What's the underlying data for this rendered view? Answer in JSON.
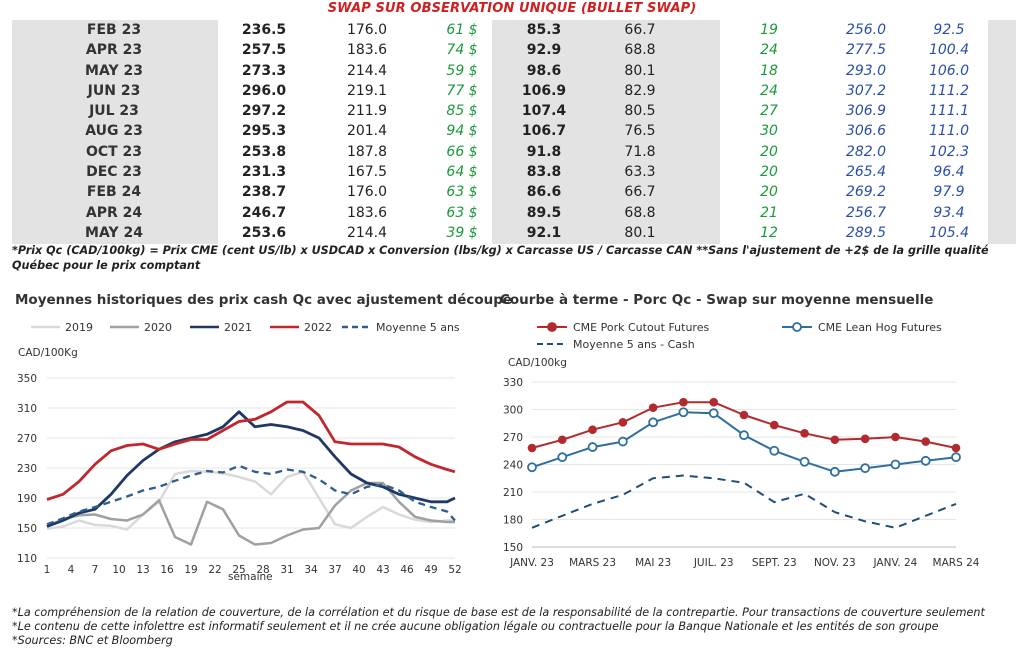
{
  "table": {
    "title": "SWAP SUR OBSERVATION UNIQUE (BULLET SWAP)",
    "rows": [
      [
        "FEB 23",
        "236.5",
        "176.0",
        "61 $",
        "85.3",
        "66.7",
        "19",
        "256.0",
        "92.5"
      ],
      [
        "APR 23",
        "257.5",
        "183.6",
        "74 $",
        "92.9",
        "68.8",
        "24",
        "277.5",
        "100.4"
      ],
      [
        "MAY 23",
        "273.3",
        "214.4",
        "59 $",
        "98.6",
        "80.1",
        "18",
        "293.0",
        "106.0"
      ],
      [
        "JUN 23",
        "296.0",
        "219.1",
        "77 $",
        "106.9",
        "82.9",
        "24",
        "307.2",
        "111.2"
      ],
      [
        "JUL 23",
        "297.2",
        "211.9",
        "85 $",
        "107.4",
        "80.5",
        "27",
        "306.9",
        "111.1"
      ],
      [
        "AUG 23",
        "295.3",
        "201.4",
        "94 $",
        "106.7",
        "76.5",
        "30",
        "306.6",
        "111.0"
      ],
      [
        "OCT 23",
        "253.8",
        "187.8",
        "66 $",
        "91.8",
        "71.8",
        "20",
        "282.0",
        "102.3"
      ],
      [
        "DEC 23",
        "231.3",
        "167.5",
        "64 $",
        "83.8",
        "63.3",
        "20",
        "265.4",
        "96.4"
      ],
      [
        "FEB 24",
        "238.7",
        "176.0",
        "63 $",
        "86.6",
        "66.7",
        "20",
        "269.2",
        "97.9"
      ],
      [
        "APR 24",
        "246.7",
        "183.6",
        "63 $",
        "89.5",
        "68.8",
        "21",
        "256.7",
        "93.4"
      ],
      [
        "MAY 24",
        "253.6",
        "214.4",
        "39 $",
        "92.1",
        "80.1",
        "12",
        "289.5",
        "105.4"
      ]
    ],
    "footnote": "*Prix Qc (CAD/100kg) = Prix CME (cent US/lb) x USDCAD x Conversion (lbs/kg) x Carcasse US / Carcasse CAN **Sans l'ajustement de +2$ de la grille qualité Québec pour le prix comptant"
  },
  "colors": {
    "title_red": "#d01f1f",
    "green": "#1a9a3a",
    "blue": "#2a4fa8",
    "grey_bg": "#e3e3e3",
    "s2019": "#d9d9d9",
    "s2020": "#a0a0a0",
    "s2021": "#1f3864",
    "s2022": "#c0282c",
    "savg": "#2e5e8e",
    "cutout": "#b22a2e",
    "lean": "#2e6f9e",
    "cash": "#1f4e79"
  },
  "chart_data": [
    {
      "type": "line",
      "title": "Moyennes historiques des prix cash Qc avec ajustement découpe",
      "ylabel": "CAD/100Kg",
      "xlabel": "semaine",
      "ylim": [
        110,
        350
      ],
      "yticks": [
        110,
        150,
        190,
        230,
        270,
        310,
        350
      ],
      "xticks": [
        1,
        4,
        7,
        10,
        13,
        16,
        19,
        22,
        25,
        28,
        31,
        34,
        37,
        40,
        43,
        46,
        49,
        52
      ],
      "legend": "top",
      "x": [
        1,
        3,
        5,
        7,
        9,
        11,
        13,
        15,
        17,
        19,
        21,
        23,
        25,
        27,
        29,
        31,
        33,
        35,
        37,
        39,
        41,
        43,
        45,
        47,
        49,
        51,
        52
      ],
      "series": [
        {
          "name": "2019",
          "style": "solid",
          "values": [
            149,
            152,
            160,
            154,
            153,
            148,
            168,
            185,
            222,
            226,
            225,
            223,
            218,
            212,
            195,
            218,
            225,
            190,
            155,
            150,
            165,
            178,
            168,
            161,
            158,
            160,
            160
          ]
        },
        {
          "name": "2020",
          "style": "solid",
          "values": [
            152,
            162,
            167,
            168,
            162,
            160,
            168,
            187,
            138,
            128,
            185,
            175,
            140,
            128,
            130,
            140,
            148,
            150,
            180,
            200,
            210,
            210,
            185,
            165,
            160,
            158,
            158
          ]
        },
        {
          "name": "2021",
          "style": "solid",
          "values": [
            152,
            160,
            170,
            175,
            195,
            220,
            240,
            255,
            265,
            270,
            275,
            285,
            305,
            285,
            288,
            285,
            280,
            270,
            245,
            222,
            210,
            205,
            195,
            190,
            185,
            185,
            190
          ]
        },
        {
          "name": "2022",
          "style": "solid",
          "values": [
            188,
            195,
            212,
            235,
            253,
            260,
            262,
            255,
            262,
            268,
            268,
            280,
            292,
            295,
            305,
            318,
            318,
            300,
            265,
            262,
            262,
            262,
            258,
            245,
            235,
            228,
            225
          ]
        },
        {
          "name": "Moyenne 5 ans",
          "style": "dashed",
          "values": [
            155,
            163,
            172,
            178,
            185,
            192,
            200,
            205,
            213,
            220,
            226,
            224,
            233,
            225,
            222,
            228,
            225,
            215,
            200,
            195,
            205,
            208,
            200,
            185,
            178,
            172,
            160
          ]
        }
      ]
    },
    {
      "type": "line",
      "title": "Courbe à terme - Porc Qc - Swap sur moyenne mensuelle",
      "ylabel": "CAD/100kg",
      "ylim": [
        150,
        330
      ],
      "yticks": [
        150,
        180,
        210,
        240,
        270,
        300,
        330
      ],
      "categories": [
        "JANV. 23",
        "FÉVR. 23",
        "MARS 23",
        "AVR. 23",
        "MAI 23",
        "JUIN 23",
        "JUIL. 23",
        "AOÛT 23",
        "SEPT. 23",
        "OCT. 23",
        "NOV. 23",
        "DÉC. 23",
        "JANV. 24",
        "FÉVR. 24",
        "MARS 24"
      ],
      "tick_labels": [
        "JANV. 23",
        "MARS 23",
        "MAI 23",
        "JUIL. 23",
        "SEPT. 23",
        "NOV. 23",
        "JANV. 24",
        "MARS 24"
      ],
      "legend": "top",
      "series": [
        {
          "name": "CME Pork Cutout Futures",
          "marker": "filled",
          "values": [
            258,
            267,
            278,
            286,
            302,
            308,
            308,
            294,
            283,
            274,
            267,
            268,
            270,
            265,
            258
          ]
        },
        {
          "name": "CME Lean Hog Futures",
          "marker": "open",
          "values": [
            237,
            248,
            259,
            265,
            286,
            297,
            296,
            272,
            255,
            243,
            232,
            236,
            240,
            244,
            248
          ]
        },
        {
          "name": "Moyenne 5 ans - Cash",
          "style": "dashed",
          "values": [
            171,
            184,
            197,
            207,
            225,
            228,
            225,
            220,
            199,
            208,
            188,
            178,
            171,
            184,
            197
          ]
        }
      ]
    }
  ],
  "disclaimers": [
    "*La compréhension de la relation de couverture, de la corrélation et du risque de base est de la responsabilité de la contrepartie. Pour transactions de couverture seulement",
    "*Le contenu de cette infolettre est informatif seulement et il ne crée aucune obligation légale ou contractuelle pour la Banque Nationale et les entités de son groupe",
    "*Sources: BNC et Bloomberg"
  ]
}
